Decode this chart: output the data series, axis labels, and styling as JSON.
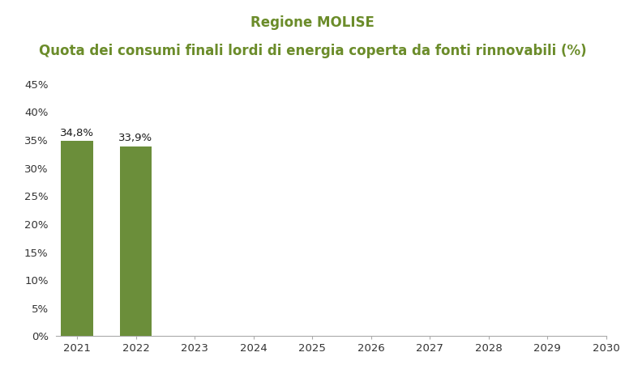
{
  "title_line1": "Regione MOLISE",
  "title_line2": "Quota dei consumi finali lordi di energia coperta da fonti rinnovabili (%)",
  "title_color": "#6b8c2a",
  "years": [
    2021,
    2022,
    2023,
    2024,
    2025,
    2026,
    2027,
    2028,
    2029,
    2030
  ],
  "values": [
    34.8,
    33.9,
    null,
    null,
    null,
    null,
    null,
    null,
    null,
    null
  ],
  "bar_color": "#6b8e3a",
  "bar_labels": [
    "34,8%",
    "33,9%"
  ],
  "ylim": [
    0,
    45
  ],
  "yticks": [
    0,
    5,
    10,
    15,
    20,
    25,
    30,
    35,
    40,
    45
  ],
  "label_fontsize": 9.5,
  "title_fontsize1": 12,
  "title_fontsize2": 12,
  "background_color": "#ffffff",
  "bar_width": 0.55
}
